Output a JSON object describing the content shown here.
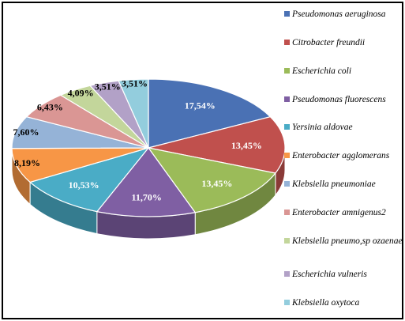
{
  "chart_data": {
    "type": "pie",
    "style": "3d",
    "legend_position": "right",
    "slices": [
      {
        "label": "Pseudomonas aeruginosa",
        "value": 17.54,
        "value_label": "17,54%",
        "color": "#4a71b4"
      },
      {
        "label": "Citrobacter freundii",
        "value": 13.45,
        "value_label": "13,45%",
        "color": "#c0504d"
      },
      {
        "label": "Escherichia coli",
        "value": 13.45,
        "value_label": "13,45%",
        "color": "#9bbb59"
      },
      {
        "label": "Pseudomonas fluorescens",
        "value": 11.7,
        "value_label": "11,70%",
        "color": "#7f5fa3"
      },
      {
        "label": "Yersinia aldovae",
        "value": 10.53,
        "value_label": "10,53%",
        "color": "#4aacc6"
      },
      {
        "label": "Enterobacter agglomerans",
        "value": 8.19,
        "value_label": "8,19%",
        "color": "#f79646"
      },
      {
        "label": "Klebsiella pneumoniae",
        "value": 7.6,
        "value_label": "7,60%",
        "color": "#95b3d7"
      },
      {
        "label": "Enterobacter amnigenus2",
        "value": 6.43,
        "value_label": "6,43%",
        "color": "#da9694"
      },
      {
        "label": "Klebsiella pneumo,sp ozaenae",
        "value": 4.09,
        "value_label": "4,09%",
        "color": "#c3d69b"
      },
      {
        "label": "Escherichia vulneris",
        "value": 3.51,
        "value_label": "3,51%",
        "color": "#b2a1c7"
      },
      {
        "label": "Klebsiella oxytoca",
        "value": 3.51,
        "value_label": "3,51%",
        "color": "#93cddd"
      }
    ]
  }
}
